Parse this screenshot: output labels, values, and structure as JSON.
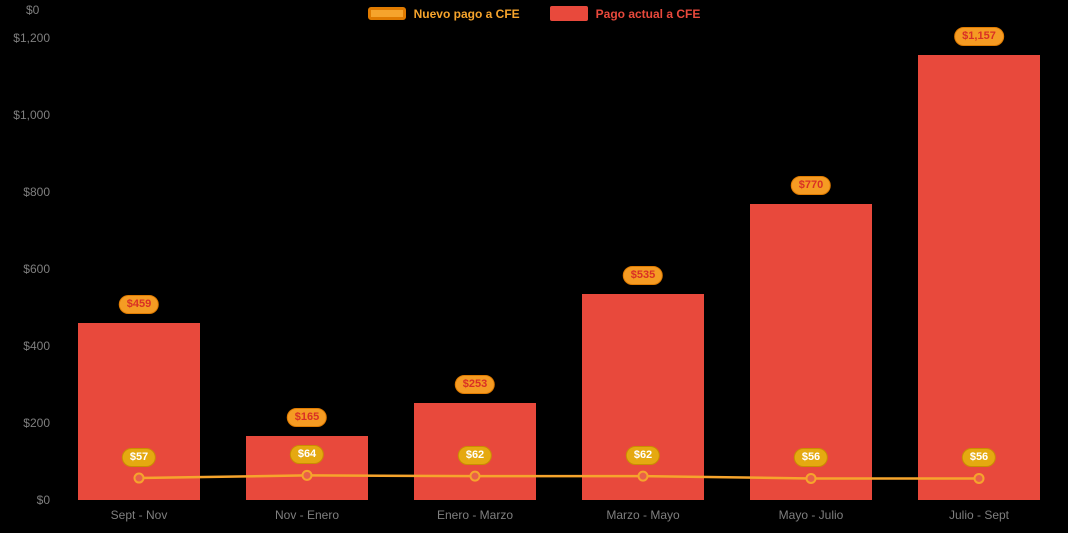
{
  "chart_data": {
    "type": "combo",
    "title": "",
    "xlabel": "",
    "ylabel": "",
    "categories": [
      "Sept - Nov",
      "Nov - Enero",
      "Enero - Marzo",
      "Marzo - Mayo",
      "Mayo - Julio",
      "Julio - Sept"
    ],
    "series": [
      {
        "name": "Nuevo pago a CFE",
        "type": "line",
        "values": [
          57,
          64,
          62,
          62,
          56,
          56
        ],
        "labels": [
          "$57",
          "$64",
          "$62",
          "$62",
          "$56",
          "$56"
        ]
      },
      {
        "name": "Pago actual a CFE",
        "type": "bar",
        "values": [
          459,
          165,
          253,
          535,
          770,
          1157
        ],
        "labels": [
          "$459",
          "$165",
          "$253",
          "$535",
          "$770",
          "$1,157"
        ]
      }
    ],
    "ylim": [
      0,
      1200
    ],
    "yticks": [
      {
        "value": 0,
        "label": "$0"
      },
      {
        "value": 200,
        "label": "$200"
      },
      {
        "value": 400,
        "label": "$400"
      },
      {
        "value": 600,
        "label": "$600"
      },
      {
        "value": 800,
        "label": "$800"
      },
      {
        "value": 1000,
        "label": "$1,000"
      },
      {
        "value": 1200,
        "label": "$1,200"
      }
    ],
    "corner_label": "$0",
    "legend_position": "top",
    "grid": false
  },
  "colors": {
    "background": "#000000",
    "bar": "#e8493c",
    "line": "#f6a42c",
    "marker_fill": "#e8604a",
    "bar_badge_bg": "#f59b23",
    "bar_badge_text": "#d93025",
    "bar_badge_border": "#e07b00",
    "line_badge_bg": "#e5a910",
    "line_badge_text": "#ffffff",
    "line_badge_border": "#c98f00",
    "axis_text": "#7f7f7f"
  }
}
